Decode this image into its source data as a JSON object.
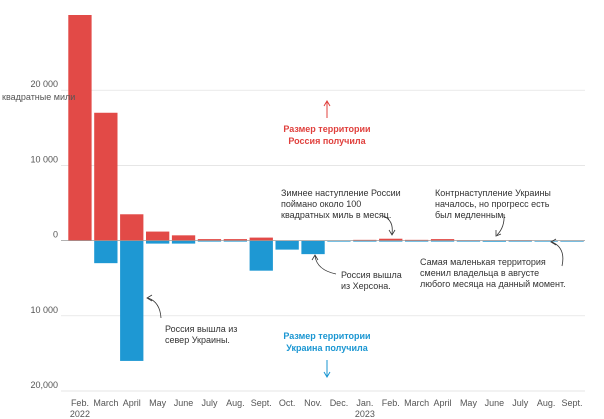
{
  "chart_data": {
    "type": "bar",
    "categories": [
      "Feb.",
      "March",
      "April",
      "May",
      "June",
      "July",
      "Aug.",
      "Sept.",
      "Oct.",
      "Nov.",
      "Dec.",
      "Jan.",
      "Feb.",
      "March",
      "April",
      "May",
      "June",
      "July",
      "Aug.",
      "Sept."
    ],
    "year_labels": [
      "2022",
      "2023"
    ],
    "series": [
      {
        "values": [
          30000,
          17000,
          3500,
          1200,
          700,
          200,
          200,
          400,
          0,
          0,
          0,
          100,
          250,
          100,
          200,
          50,
          30,
          50,
          20,
          10
        ],
        "color": "#e24a47"
      },
      {
        "values": [
          0,
          -3000,
          -16000,
          -400,
          -400,
          -100,
          -100,
          -4000,
          -1200,
          -1800,
          -100,
          -100,
          -100,
          -100,
          -100,
          -80,
          -150,
          -50,
          -20,
          -10
        ],
        "color": "#1e98d3"
      }
    ],
    "ylabel": "квадратные мили",
    "ylim": [
      -20000,
      30000
    ],
    "yticks": [
      20000,
      10000,
      0,
      -10000,
      -20000
    ],
    "ytick_labels": [
      "20 000",
      "10 000",
      "0",
      "10 000",
      "20,000"
    ],
    "grid": true,
    "annotations": {
      "russia_gained": [
        "Размер территории",
        "Россия получила"
      ],
      "ukraine_gained": [
        "Размер территории",
        "Украина получила"
      ],
      "winter_offensive": [
        "Зимнее наступление России",
        "поймано около 100",
        "квадратных миль в месяц."
      ],
      "counteroffensive": [
        "Контрнаступление Украины",
        "началось, но прогресс есть",
        "был медленным."
      ],
      "kherson": [
        "Россия вышла",
        "из Херсона."
      ],
      "north": [
        "Россия вышла из",
        "север Украины."
      ],
      "smallest": [
        "Самая маленькая территория",
        "сменил владельца в августе",
        "любого месяца на данный момент."
      ]
    }
  }
}
